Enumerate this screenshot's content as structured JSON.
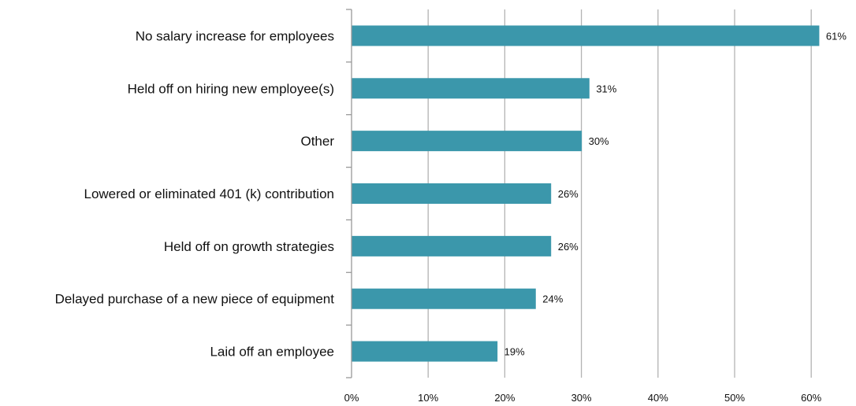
{
  "chart_data": {
    "type": "bar",
    "orientation": "horizontal",
    "categories": [
      "No salary increase for employees",
      "Held off on hiring new employee(s)",
      "Other",
      "Lowered or eliminated 401 (k) contribution",
      "Held off on growth strategies",
      "Delayed purchase of a new piece of equipment",
      "Laid off an employee"
    ],
    "values": [
      61,
      31,
      30,
      26,
      26,
      24,
      19
    ],
    "data_labels": [
      "61%",
      "31%",
      "30%",
      "26%",
      "26%",
      "24%",
      "19%"
    ],
    "x_ticks": [
      0,
      10,
      20,
      30,
      40,
      50,
      60
    ],
    "x_tick_labels": [
      "0%",
      "10%",
      "20%",
      "30%",
      "40%",
      "50%",
      "60%"
    ],
    "xlim": [
      0,
      66
    ],
    "grid": "vertical",
    "legend": "none",
    "bar_color": "#3b97ab",
    "grid_color": "#b3b3b3",
    "axis_color": "#999999"
  }
}
